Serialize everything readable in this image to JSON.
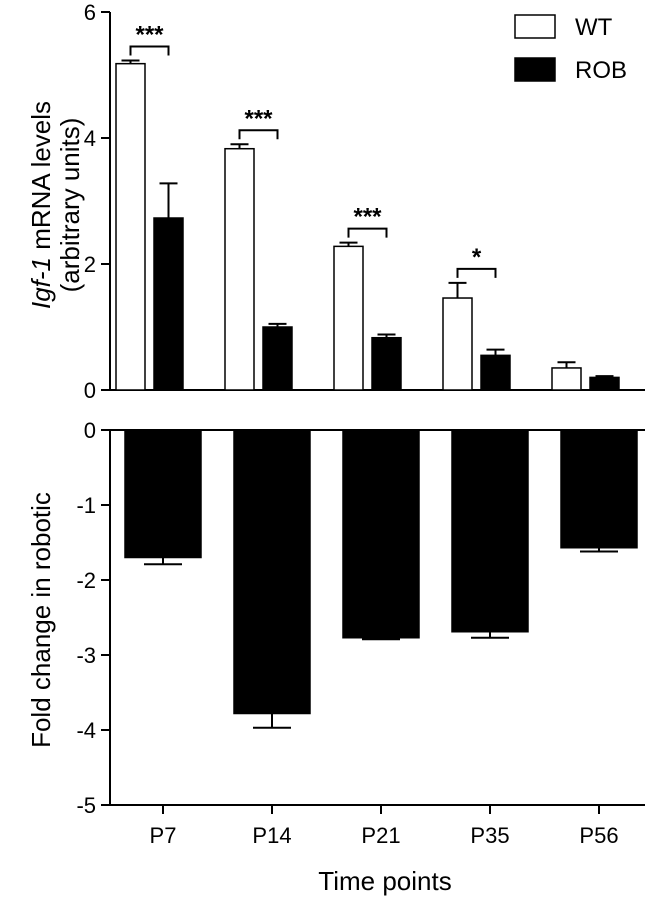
{
  "chart_data": [
    {
      "type": "bar",
      "categories": [
        "P7",
        "P14",
        "P21",
        "P35",
        "P56"
      ],
      "ylabel_italic": "Igf-1",
      "ylabel_rest": " mRNA levels",
      "ylabel_line2": "(arbitrary units)",
      "ylim": [
        0,
        6
      ],
      "yticks": [
        0,
        2,
        4,
        6
      ],
      "grid": false,
      "legend_position": "top-right",
      "series": [
        {
          "name": "WT",
          "fill": "#ffffff",
          "stroke": "#000000",
          "values": [
            5.18,
            3.83,
            2.28,
            1.46,
            0.35
          ],
          "errors": [
            0.05,
            0.07,
            0.06,
            0.24,
            0.09
          ]
        },
        {
          "name": "ROB",
          "fill": "#000000",
          "stroke": "#000000",
          "values": [
            2.73,
            1.0,
            0.83,
            0.55,
            0.2
          ],
          "errors": [
            0.55,
            0.05,
            0.05,
            0.09,
            0.02
          ]
        }
      ],
      "significance": [
        "***",
        "***",
        "***",
        "*",
        ""
      ]
    },
    {
      "type": "bar",
      "categories": [
        "P7",
        "P14",
        "P21",
        "P35",
        "P56"
      ],
      "ylabel": "Fold change in robotic",
      "xlabel": "Time points",
      "ylim": [
        -5,
        0
      ],
      "yticks": [
        0,
        -1,
        -2,
        -3,
        -4,
        -5
      ],
      "grid": false,
      "series": [
        {
          "fill": "#000000",
          "values": [
            -1.7,
            -3.78,
            -2.77,
            -2.69,
            -1.57
          ],
          "errors": [
            0.09,
            0.19,
            0.02,
            0.08,
            0.05
          ]
        }
      ]
    }
  ]
}
